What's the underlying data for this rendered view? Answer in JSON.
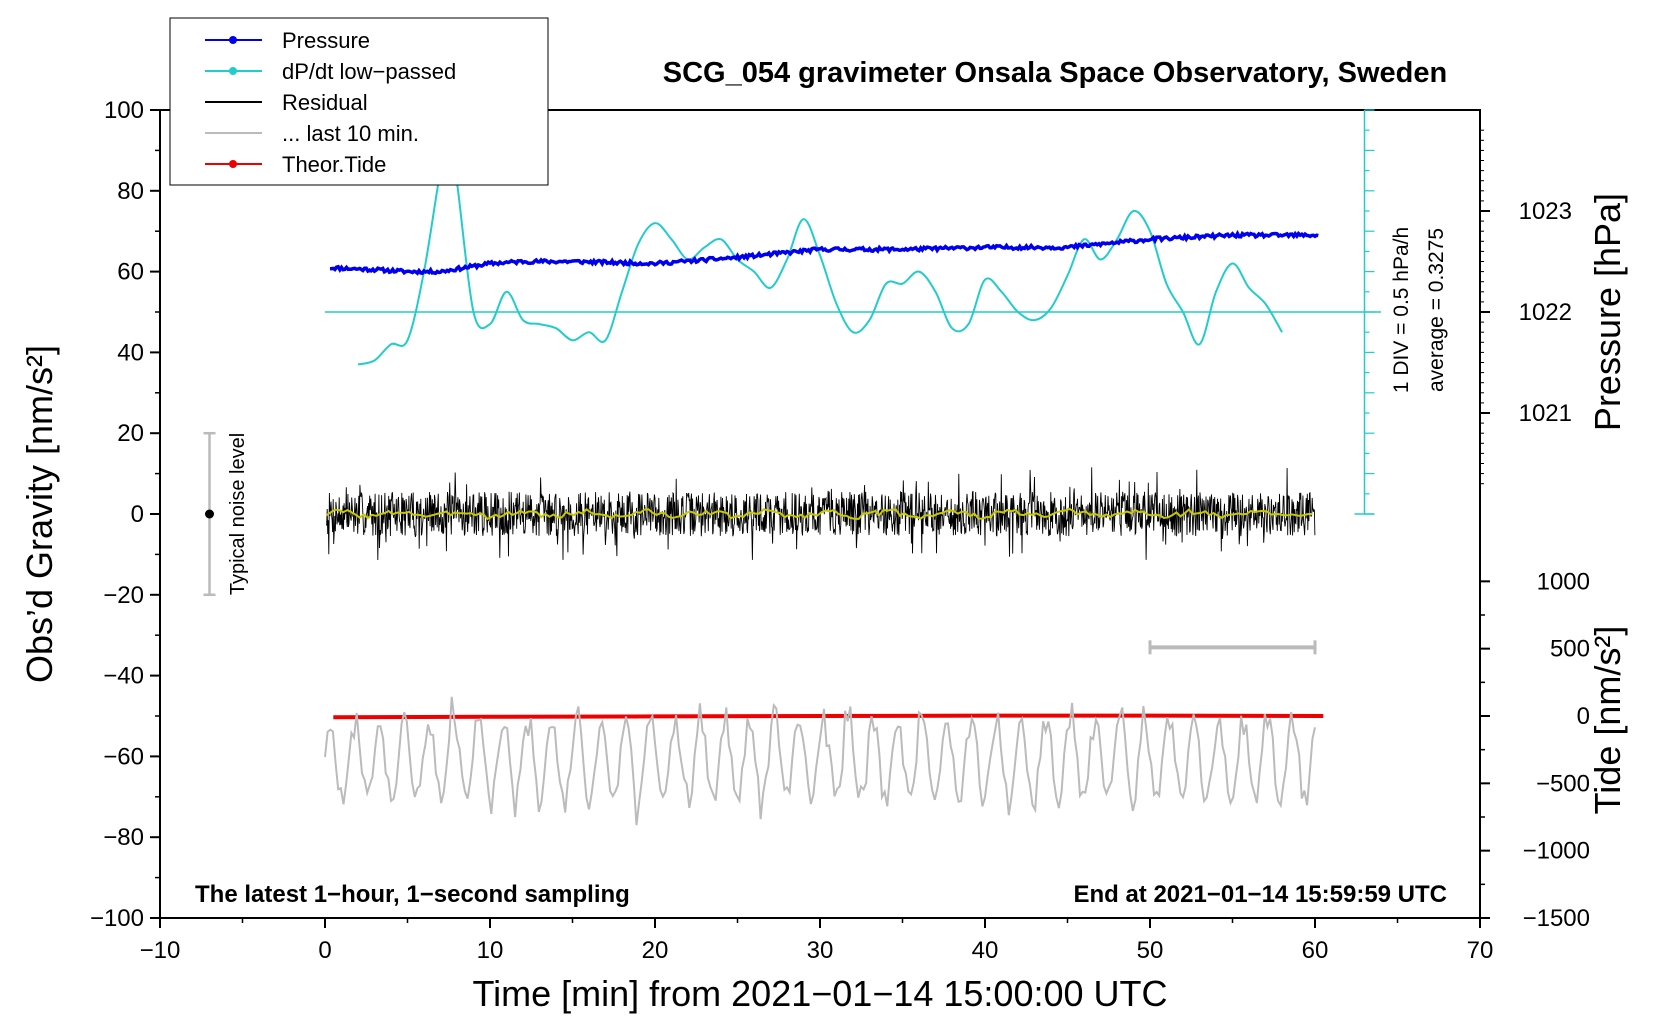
{
  "chart_data": {
    "type": "line",
    "title": "SCG_054 gravimeter Onsala Space Observatory, Sweden",
    "xlabel": "Time [min] from 2021−01−14 15:00:00 UTC",
    "ylabel_left": "Obs’d Gravity [nm/s²]",
    "ylabel_right_pressure": "Pressure [hPa]",
    "ylabel_right_tide": "Tide [nm/s²]",
    "xlim": [
      -10,
      70
    ],
    "ylim": [
      -100,
      100
    ],
    "x_ticks": [
      "−10",
      "0",
      "10",
      "20",
      "30",
      "40",
      "50",
      "60",
      "70"
    ],
    "x_tick_values": [
      -10,
      0,
      10,
      20,
      30,
      40,
      50,
      60,
      70
    ],
    "y_ticks": [
      "100",
      "80",
      "60",
      "40",
      "20",
      "0",
      "−20",
      "−40",
      "−60",
      "−80",
      "−100"
    ],
    "y_tick_values": [
      100,
      80,
      60,
      40,
      20,
      0,
      -20,
      -40,
      -60,
      -80,
      -100
    ],
    "pressure_axis": {
      "ticks": [
        "1023",
        "1022",
        "1021"
      ],
      "tick_values": [
        1023,
        1022,
        1021
      ],
      "gravity_equiv": [
        75,
        50,
        25
      ]
    },
    "tide_axis": {
      "ticks": [
        "1000",
        "500",
        "0",
        "−500",
        "−1000",
        "−1500"
      ],
      "tick_values": [
        1000,
        500,
        0,
        -500,
        -1000,
        -1500
      ],
      "gravity_equiv": [
        -16.67,
        -33.33,
        -50,
        -66.67,
        -83.33,
        -100
      ]
    },
    "legend": {
      "position": "top-left",
      "entries": [
        {
          "label": "Pressure",
          "color": "#0000ee",
          "style": "line-dot"
        },
        {
          "label": "dP/dt low−passed",
          "color": "#22cccc",
          "style": "line-dot"
        },
        {
          "label": "Residual",
          "color": "#000000",
          "style": "line"
        },
        {
          "label": "... last 10 min.",
          "color": "#bbbbbb",
          "style": "line"
        },
        {
          "label": "Theor.Tide",
          "color": "#ee0000",
          "style": "line-dot"
        }
      ]
    },
    "series": [
      {
        "name": "Pressure",
        "color": "#0000ee",
        "x": [
          0,
          3,
          5,
          7,
          10,
          12,
          15,
          20,
          25,
          30,
          35,
          40,
          45,
          50,
          55,
          60
        ],
        "y": [
          61,
          60.5,
          60,
          60,
          62,
          62.5,
          62.5,
          62,
          63.5,
          65.5,
          65.5,
          66,
          66,
          68,
          69,
          69
        ]
      },
      {
        "name": "dP/dt low−passed",
        "color": "#22cccc",
        "x": [
          2,
          3,
          4,
          5,
          6,
          7,
          7.5,
          8,
          9,
          10,
          11,
          12,
          13,
          14,
          15,
          16,
          17,
          18,
          19,
          20,
          21,
          22,
          23,
          24,
          25,
          26,
          27,
          28,
          29,
          30,
          31,
          32,
          33,
          34,
          35,
          36,
          37,
          38,
          39,
          40,
          41,
          42,
          43,
          44,
          45,
          46,
          47,
          48,
          49,
          50,
          51,
          52,
          53,
          54,
          55,
          56,
          57,
          58
        ],
        "y": [
          37,
          38,
          42,
          43,
          60,
          85,
          92,
          82,
          50,
          47,
          55,
          48,
          47,
          46,
          43,
          45,
          43,
          55,
          67,
          72,
          68,
          63,
          66,
          68,
          63,
          60,
          56,
          63,
          73,
          64,
          52,
          45,
          48,
          57,
          57,
          60,
          55,
          46,
          47,
          58,
          55,
          50,
          48,
          51,
          59,
          68,
          63,
          68,
          75,
          70,
          57,
          50,
          42,
          55,
          62,
          56,
          52,
          45
        ]
      },
      {
        "name": "Theor.Tide",
        "color": "#ee0000",
        "x": [
          0.5,
          10,
          20,
          30,
          40,
          50,
          60.5
        ],
        "y": [
          -50.3,
          -50.2,
          -50.1,
          -50.0,
          -49.9,
          -49.9,
          -50.0
        ]
      }
    ],
    "dpdt_reference": {
      "average_label": "average = 0.3275",
      "scale_label": "1 DIV = 0.5 hPa/h",
      "zero_line_y": 50,
      "x_range": [
        0,
        64
      ]
    },
    "annotations": {
      "noise_label": "Typical noise level",
      "noise_range": [
        -20,
        20
      ],
      "noise_x": -7,
      "last10_bar_x": [
        50,
        60
      ],
      "last10_bar_y": -33,
      "bottom_left": "The latest 1−hour, 1−second sampling",
      "bottom_right": "End at 2021−01−14 15:59:59 UTC"
    }
  }
}
